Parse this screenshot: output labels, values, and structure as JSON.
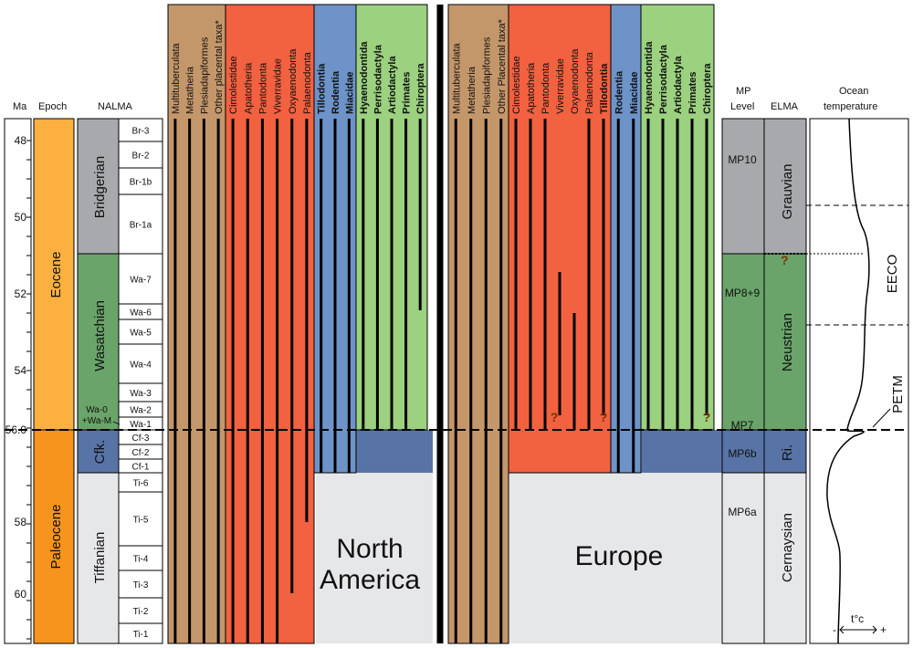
{
  "headers": {
    "ma": "Ma",
    "epoch": "Epoch",
    "nalma": "NALMA",
    "mp_level_1": "MP",
    "mp_level_2": "Level",
    "elma": "ELMA",
    "ocean_1": "Ocean",
    "ocean_2": "temperature"
  },
  "age_ticks": [
    "48",
    "50",
    "52",
    "54",
    "56.0",
    "58",
    "60"
  ],
  "epochs": [
    {
      "label": "Eocene",
      "color": "#FBB040"
    },
    {
      "label": "Paleocene",
      "color": "#F7941D"
    }
  ],
  "nalma_stages": [
    {
      "label": "Bridgerian"
    },
    {
      "label": "Wasatchian"
    },
    {
      "label": "Cfk."
    },
    {
      "label": "Tiffanian"
    }
  ],
  "nalma_substages": [
    "Br-3",
    "Br-2",
    "Br-1b",
    "Br-1a",
    "Wa-7",
    "Wa-6",
    "Wa-5",
    "Wa-4",
    "Wa-3",
    "Wa-2",
    "Wa-1",
    "Cf-3",
    "Cf-2",
    "Cf-1",
    "Ti-6",
    "Ti-5",
    "Ti-4",
    "Ti-3",
    "Ti-2",
    "Ti-1"
  ],
  "wa0_label_1": "Wa-0",
  "wa0_label_2": "+Wa-M",
  "north_america": {
    "name_line1": "North",
    "name_line2": "America",
    "groups": [
      {
        "color": "#C4976B",
        "taxa": [
          "Multituberculata",
          "Metatheria",
          "Plesiadapiformes",
          "Other placental taxa*"
        ],
        "bold": [
          false,
          false,
          false,
          false
        ]
      },
      {
        "color": "#F26140",
        "taxa": [
          "Cimolestidae",
          "Apatotheria",
          "Pantodonta",
          "Viverravidae",
          "Oxyaenodonta",
          "Palaenodonta"
        ],
        "bold": [
          false,
          false,
          false,
          false,
          false,
          false
        ]
      },
      {
        "color": "#6D93C9",
        "taxa": [
          "Tillodontia",
          "Rodentia",
          "Miacidae"
        ],
        "bold": [
          true,
          true,
          true
        ]
      },
      {
        "color": "#9BD17F",
        "taxa": [
          "Hyaenodontida",
          "Perrisodactyla",
          "Artiodactyla",
          "Primates",
          "Chiroptera"
        ],
        "bold": [
          true,
          true,
          true,
          true,
          true
        ]
      }
    ]
  },
  "europe": {
    "name": "Europe",
    "groups": [
      {
        "color": "#C4976B",
        "taxa": [
          "Multituberculata",
          "Metatheria",
          "Plesiadapiformes",
          "Other Placental taxa*"
        ],
        "bold": [
          false,
          false,
          false,
          false
        ]
      },
      {
        "color": "#F26140",
        "taxa": [
          "Cimolestidae",
          "Apatotheria",
          "Pantodonta",
          "Viverravidae",
          "Oxyaenodonta",
          "Palaenodonta",
          "Tillodontia"
        ],
        "bold": [
          false,
          false,
          false,
          false,
          false,
          false,
          true
        ]
      },
      {
        "color": "#6D93C9",
        "taxa": [
          "Rodentia",
          "Miacidae"
        ],
        "bold": [
          true,
          true
        ]
      },
      {
        "color": "#9BD17F",
        "taxa": [
          "Hyaenodontida",
          "Perrisodactyla",
          "Artiodactyla",
          "Primates",
          "Chiroptera"
        ],
        "bold": [
          true,
          true,
          true,
          true,
          true
        ]
      }
    ]
  },
  "uncertain_mark": "?",
  "mp_levels": [
    "MP10",
    "MP8+9",
    "MP7",
    "MP6b",
    "MP6a"
  ],
  "elma_stages": [
    "Grauvian",
    "Neustrian",
    "Ri.",
    "Cernaysian"
  ],
  "elma_question": "?",
  "ocean": {
    "eeco": "EECO",
    "petm": "PETM",
    "unit": "t°c",
    "minus": "-",
    "plus": "+"
  },
  "colors": {
    "bridgerian": "#A7A9AC",
    "wasatchian": "#6AA46A",
    "cfk": "#5873A6",
    "tiffanian": "#E6E7E8",
    "green_band": "#6AA46A",
    "blue_band": "#5873A6",
    "pale_band": "#E6E7E8"
  }
}
